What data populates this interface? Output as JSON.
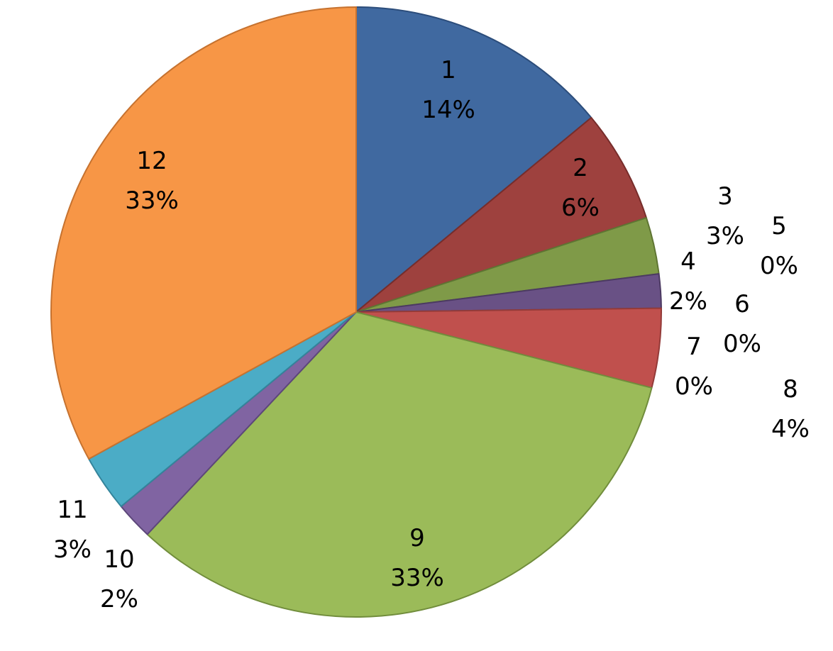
{
  "chart_data": {
    "type": "pie",
    "start_angle_deg": 0,
    "direction": "clockwise",
    "legend": "none",
    "slices": [
      {
        "name": "1",
        "label": "14%",
        "value": 14.0,
        "color": "#4069a0",
        "stroke": "#2c4d7b"
      },
      {
        "name": "2",
        "label": "6%",
        "value": 6.0,
        "color": "#9e413e",
        "stroke": "#772d2b"
      },
      {
        "name": "3",
        "label": "3%",
        "value": 3.0,
        "color": "#7f9a48",
        "stroke": "#5f7533"
      },
      {
        "name": "4",
        "label": "2%",
        "value": 1.8,
        "color": "#695185",
        "stroke": "#4c3a62"
      },
      {
        "name": "5",
        "label": "0%",
        "value": 0.0,
        "color": "#3b8fa6",
        "stroke": "#2b6b7d"
      },
      {
        "name": "6",
        "label": "0%",
        "value": 0.0,
        "color": "#d78130",
        "stroke": "#a96322"
      },
      {
        "name": "7",
        "label": "0%",
        "value": 0.0,
        "color": "#5a7fb8",
        "stroke": "#3f5f8f"
      },
      {
        "name": "8",
        "label": "4%",
        "value": 4.2,
        "color": "#c0504d",
        "stroke": "#943b39"
      },
      {
        "name": "9",
        "label": "33%",
        "value": 33.0,
        "color": "#9bbb59",
        "stroke": "#718d3c"
      },
      {
        "name": "10",
        "label": "2%",
        "value": 2.0,
        "color": "#8064a2",
        "stroke": "#5d477a"
      },
      {
        "name": "11",
        "label": "3%",
        "value": 3.0,
        "color": "#4bacc6",
        "stroke": "#34849b"
      },
      {
        "name": "12",
        "label": "33%",
        "value": 33.0,
        "color": "#f79646",
        "stroke": "#c6722f"
      }
    ]
  }
}
